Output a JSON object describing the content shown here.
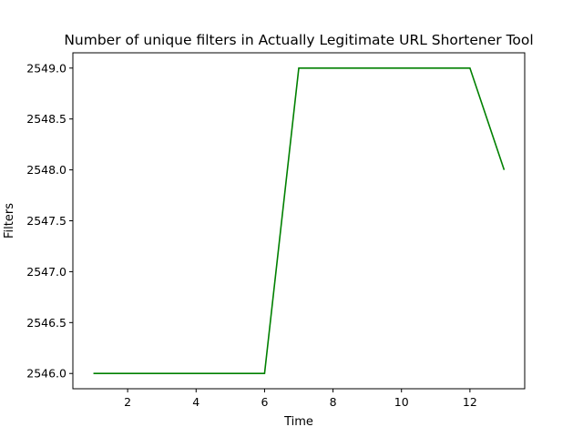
{
  "chart_data": {
    "type": "line",
    "title": "Number of unique filters in Actually Legitimate URL Shortener Tool",
    "xlabel": "Time",
    "ylabel": "Filters",
    "xlim": [
      0.4,
      13.6
    ],
    "ylim": [
      2545.85,
      2549.15
    ],
    "xticks": [
      2,
      4,
      6,
      8,
      10,
      12
    ],
    "yticks": [
      2546.0,
      2546.5,
      2547.0,
      2547.5,
      2548.0,
      2548.5,
      2549.0
    ],
    "grid": false,
    "series": [
      {
        "color": "#008000",
        "x": [
          1,
          2,
          3,
          4,
          5,
          6,
          7,
          8,
          9,
          10,
          11,
          12,
          13
        ],
        "y": [
          2546,
          2546,
          2546,
          2546,
          2546,
          2546,
          2549,
          2549,
          2549,
          2549,
          2549,
          2549,
          2548
        ]
      }
    ]
  }
}
